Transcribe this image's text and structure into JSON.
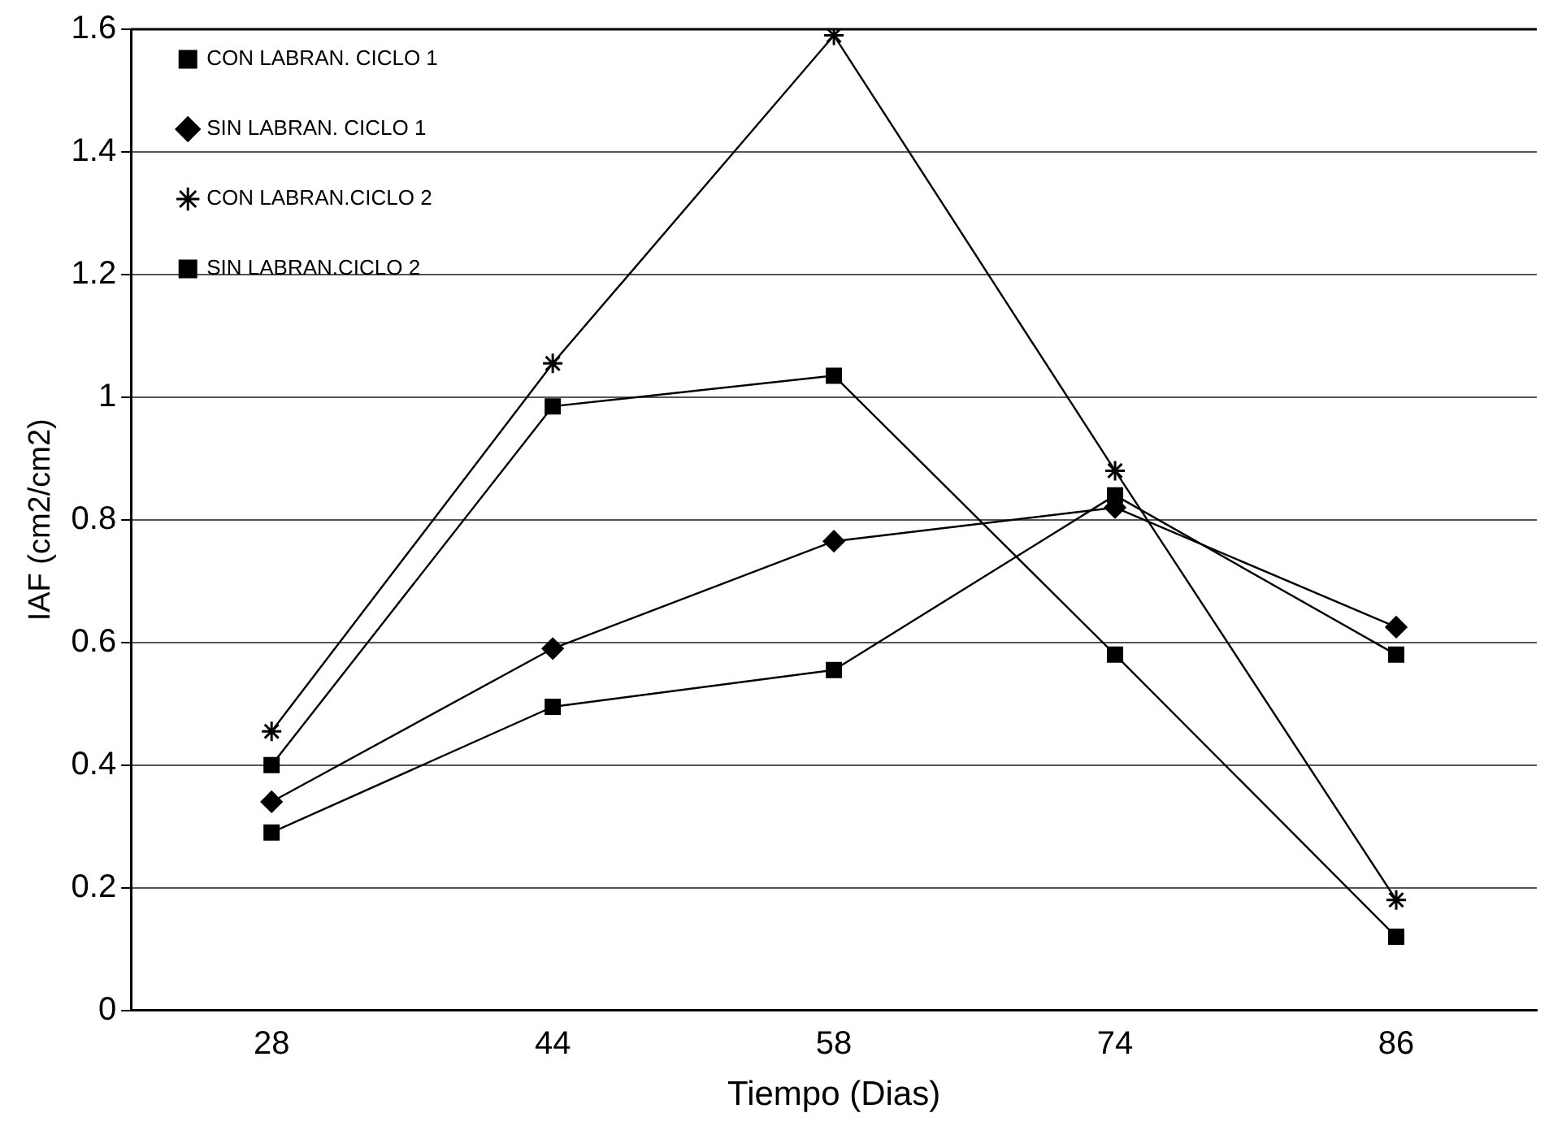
{
  "chart_data": {
    "type": "line",
    "xlabel": "Tiempo (Dias)",
    "ylabel": "IAF (cm2/cm2)",
    "categories": [
      "28",
      "44",
      "58",
      "74",
      "86"
    ],
    "series": [
      {
        "name": "CON LABRAN. CICLO 1",
        "color": "#000000",
        "marker": "square",
        "values": [
          0.29,
          0.495,
          0.555,
          0.84,
          0.58
        ]
      },
      {
        "name": "SIN LABRAN. CICLO 1",
        "color": "#000000",
        "marker": "diamond",
        "values": [
          0.34,
          0.59,
          0.765,
          0.82,
          0.625
        ]
      },
      {
        "name": "CON LABRAN.CICLO 2",
        "color": "#000000",
        "marker": "cross",
        "values": [
          0.455,
          1.055,
          1.59,
          0.88,
          0.18
        ]
      },
      {
        "name": "SIN LABRAN.CICLO 2",
        "color": "#000000",
        "marker": "square",
        "values": [
          0.4,
          0.985,
          1.035,
          0.58,
          0.12
        ]
      }
    ],
    "ylim": [
      0,
      1.6
    ],
    "yticks": [
      0,
      0.2,
      0.4,
      0.6,
      0.8,
      1,
      1.2,
      1.4,
      1.6
    ],
    "grid": "y",
    "legend": "top left",
    "line_style": "solid"
  }
}
